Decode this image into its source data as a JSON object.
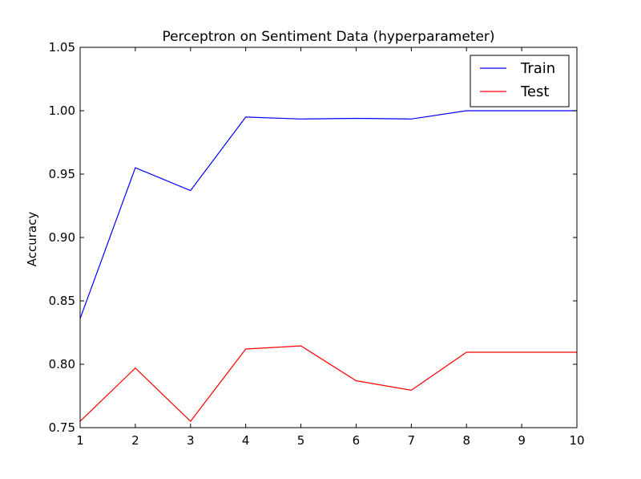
{
  "chart_data": {
    "type": "line",
    "title": "Perceptron on Sentiment Data (hyperparameter)",
    "xlabel": "",
    "ylabel": "Accuracy",
    "x": [
      1,
      2,
      3,
      4,
      5,
      6,
      7,
      8,
      9,
      10
    ],
    "xlim": [
      1,
      10
    ],
    "ylim": [
      0.75,
      1.05
    ],
    "xticks": [
      "1",
      "2",
      "3",
      "4",
      "5",
      "6",
      "7",
      "8",
      "9",
      "10"
    ],
    "yticks": [
      "0.75",
      "0.80",
      "0.85",
      "0.90",
      "0.95",
      "1.00",
      "1.05"
    ],
    "grid": false,
    "legend_position": "top-right",
    "series": [
      {
        "name": "Train",
        "color": "#0000ff",
        "values": [
          0.836,
          0.955,
          0.937,
          0.995,
          0.9935,
          0.994,
          0.9935,
          1.0,
          1.0,
          1.0
        ]
      },
      {
        "name": "Test",
        "color": "#ff0000",
        "values": [
          0.755,
          0.797,
          0.755,
          0.812,
          0.8145,
          0.787,
          0.7795,
          0.8095,
          0.8095,
          0.8095
        ]
      }
    ]
  }
}
